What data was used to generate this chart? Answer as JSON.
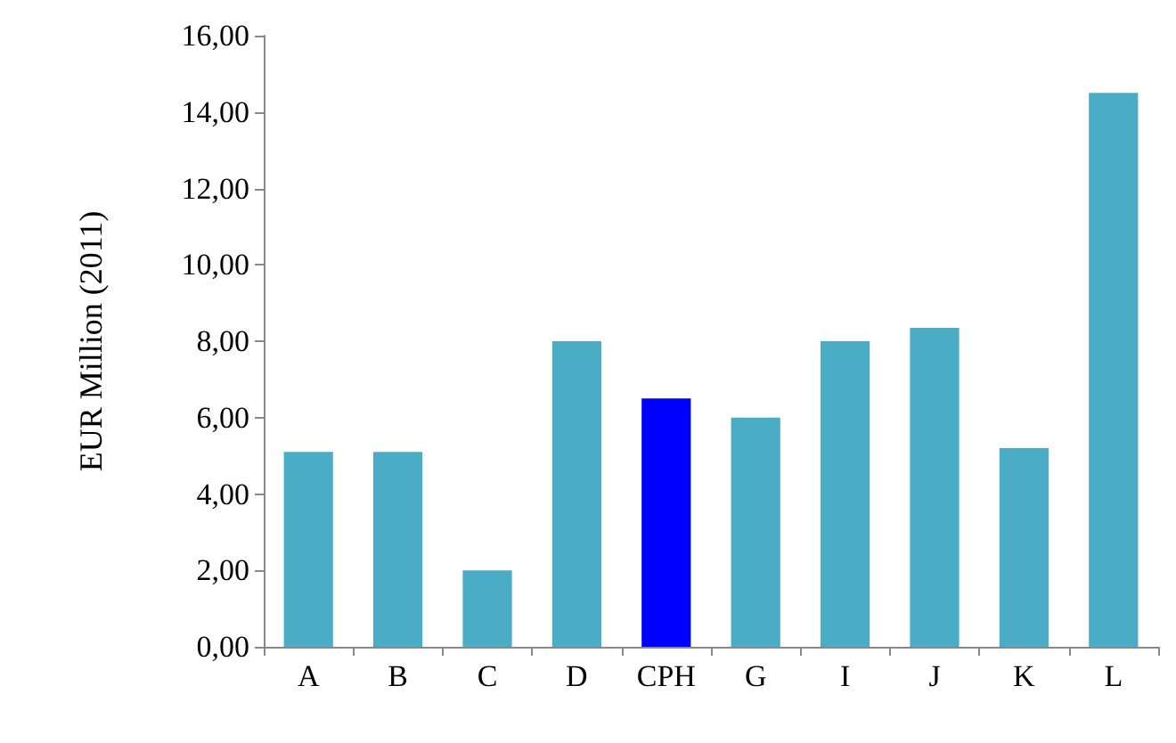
{
  "chart_data": {
    "type": "bar",
    "ylabel": "EUR Million (2011)",
    "categories": [
      "A",
      "B",
      "C",
      "D",
      "CPH",
      "G",
      "I",
      "J",
      "K",
      "L"
    ],
    "values": [
      5.1,
      5.1,
      2.0,
      8.0,
      6.5,
      6.0,
      8.0,
      8.35,
      5.2,
      14.5
    ],
    "colors": [
      "#4bacc6",
      "#4bacc6",
      "#4bacc6",
      "#4bacc6",
      "#0000ff",
      "#4bacc6",
      "#4bacc6",
      "#4bacc6",
      "#4bacc6",
      "#4bacc6"
    ],
    "ylim": [
      0,
      16
    ],
    "yticks": [
      {
        "value": 0,
        "label": "0,00"
      },
      {
        "value": 2,
        "label": "2,00"
      },
      {
        "value": 4,
        "label": "4,00"
      },
      {
        "value": 6,
        "label": "6,00"
      },
      {
        "value": 8,
        "label": "8,00"
      },
      {
        "value": 10,
        "label": "10,00"
      },
      {
        "value": 12,
        "label": "12,00"
      },
      {
        "value": 14,
        "label": "14,00"
      },
      {
        "value": 16,
        "label": "16,00"
      }
    ],
    "grid": false
  }
}
